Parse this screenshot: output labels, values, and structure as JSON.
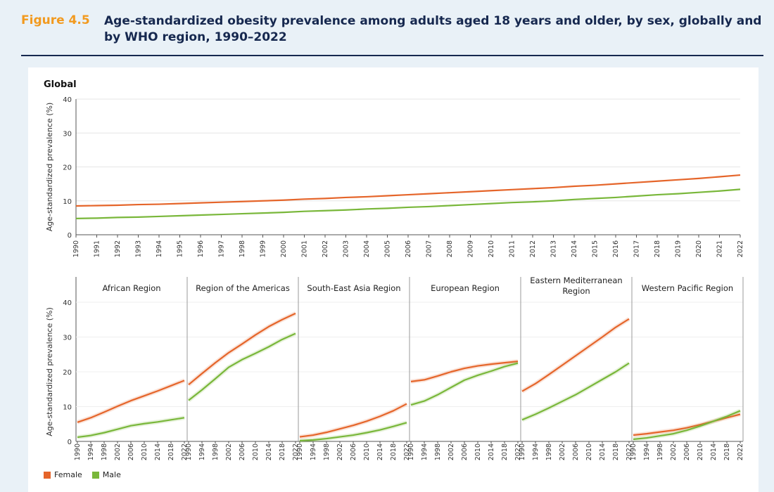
{
  "figure": {
    "label": "Figure 4.5",
    "title": "Age-standardized obesity prevalence among adults aged 18 years and older, by sex, globally and by WHO region, 1990–2022"
  },
  "colors": {
    "female": "#e5652a",
    "male": "#79b73a",
    "grid": "#e6e6e6",
    "axis": "#555555"
  },
  "legend": [
    {
      "key": "female",
      "label": "Female"
    },
    {
      "key": "male",
      "label": "Male"
    }
  ],
  "chart_data": [
    {
      "type": "line",
      "title": "Global",
      "ylabel": "Age-standardized prevalence (%)",
      "xlabel": "",
      "ylim": [
        0,
        40
      ],
      "yticks": [
        0,
        10,
        20,
        30,
        40
      ],
      "x": [
        1990,
        1991,
        1992,
        1993,
        1994,
        1995,
        1996,
        1997,
        1998,
        1999,
        2000,
        2001,
        2002,
        2003,
        2004,
        2005,
        2006,
        2007,
        2008,
        2009,
        2010,
        2011,
        2012,
        2013,
        2014,
        2015,
        2016,
        2017,
        2018,
        2019,
        2020,
        2021,
        2022
      ],
      "series": [
        {
          "name": "Female",
          "values": [
            8.5,
            8.6,
            8.7,
            8.9,
            9.0,
            9.2,
            9.4,
            9.6,
            9.8,
            10.0,
            10.2,
            10.5,
            10.7,
            11.0,
            11.2,
            11.5,
            11.8,
            12.1,
            12.4,
            12.7,
            13.0,
            13.3,
            13.6,
            13.9,
            14.3,
            14.6,
            15.0,
            15.4,
            15.8,
            16.2,
            16.6,
            17.1,
            17.6
          ]
        },
        {
          "name": "Male",
          "values": [
            4.8,
            4.9,
            5.1,
            5.2,
            5.4,
            5.6,
            5.8,
            6.0,
            6.2,
            6.4,
            6.6,
            6.9,
            7.1,
            7.3,
            7.6,
            7.8,
            8.1,
            8.3,
            8.6,
            8.9,
            9.2,
            9.5,
            9.7,
            10.0,
            10.4,
            10.7,
            11.0,
            11.4,
            11.8,
            12.1,
            12.5,
            12.9,
            13.4
          ]
        }
      ]
    },
    {
      "type": "line",
      "ylabel": "Age-standardized prevalence (%)",
      "ylim": [
        0,
        40
      ],
      "yticks": [
        0,
        10,
        20,
        30,
        40
      ],
      "xticks": [
        1990,
        1994,
        1998,
        2002,
        2006,
        2010,
        2014,
        2018,
        2022
      ],
      "panels": [
        {
          "title": "African Region",
          "x": [
            1990,
            1994,
            1998,
            2002,
            2006,
            2010,
            2014,
            2018,
            2022
          ],
          "series": [
            {
              "name": "Female",
              "values": [
                5.5,
                6.8,
                8.4,
                10.1,
                11.7,
                13.1,
                14.5,
                16.0,
                17.5
              ]
            },
            {
              "name": "Male",
              "values": [
                1.2,
                1.7,
                2.5,
                3.5,
                4.5,
                5.1,
                5.6,
                6.2,
                6.8
              ]
            }
          ]
        },
        {
          "title": "Region of the Americas",
          "x": [
            1990,
            1994,
            1998,
            2002,
            2006,
            2010,
            2014,
            2018,
            2022
          ],
          "series": [
            {
              "name": "Female",
              "values": [
                16.3,
                19.5,
                22.6,
                25.5,
                28.0,
                30.6,
                33.0,
                35.0,
                36.8
              ]
            },
            {
              "name": "Male",
              "values": [
                11.8,
                14.8,
                18.0,
                21.3,
                23.5,
                25.3,
                27.2,
                29.3,
                31.0
              ]
            }
          ]
        },
        {
          "title": "South-East Asia Region",
          "x": [
            1990,
            1994,
            1998,
            2002,
            2006,
            2010,
            2014,
            2018,
            2022
          ],
          "series": [
            {
              "name": "Female",
              "values": [
                1.3,
                1.8,
                2.6,
                3.6,
                4.6,
                5.8,
                7.2,
                8.8,
                10.8
              ]
            },
            {
              "name": "Male",
              "values": [
                0.2,
                0.4,
                0.8,
                1.3,
                1.8,
                2.5,
                3.3,
                4.3,
                5.4
              ]
            }
          ]
        },
        {
          "title": "European Region",
          "x": [
            1990,
            1994,
            1998,
            2002,
            2006,
            2010,
            2014,
            2018,
            2022
          ],
          "series": [
            {
              "name": "Female",
              "values": [
                17.2,
                17.7,
                18.8,
                20.0,
                21.0,
                21.7,
                22.2,
                22.6,
                23.0
              ]
            },
            {
              "name": "Male",
              "values": [
                10.5,
                11.6,
                13.4,
                15.5,
                17.6,
                19.0,
                20.2,
                21.5,
                22.5
              ]
            }
          ]
        },
        {
          "title": "Eastern Mediterranean Region",
          "x": [
            1990,
            1994,
            1998,
            2002,
            2006,
            2010,
            2014,
            2018,
            2022
          ],
          "series": [
            {
              "name": "Female",
              "values": [
                14.4,
                16.6,
                19.2,
                21.9,
                24.6,
                27.3,
                30.0,
                32.8,
                35.2
              ]
            },
            {
              "name": "Male",
              "values": [
                6.2,
                7.8,
                9.6,
                11.5,
                13.4,
                15.6,
                17.8,
                20.0,
                22.5
              ]
            }
          ]
        },
        {
          "title": "Western Pacific Region",
          "x": [
            1990,
            1994,
            1998,
            2002,
            2006,
            2010,
            2014,
            2018,
            2022
          ],
          "series": [
            {
              "name": "Female",
              "values": [
                1.8,
                2.2,
                2.7,
                3.2,
                3.9,
                4.8,
                5.8,
                6.8,
                7.8
              ]
            },
            {
              "name": "Male",
              "values": [
                0.6,
                1.0,
                1.6,
                2.2,
                3.2,
                4.4,
                5.8,
                7.2,
                8.8
              ]
            }
          ]
        }
      ]
    }
  ]
}
